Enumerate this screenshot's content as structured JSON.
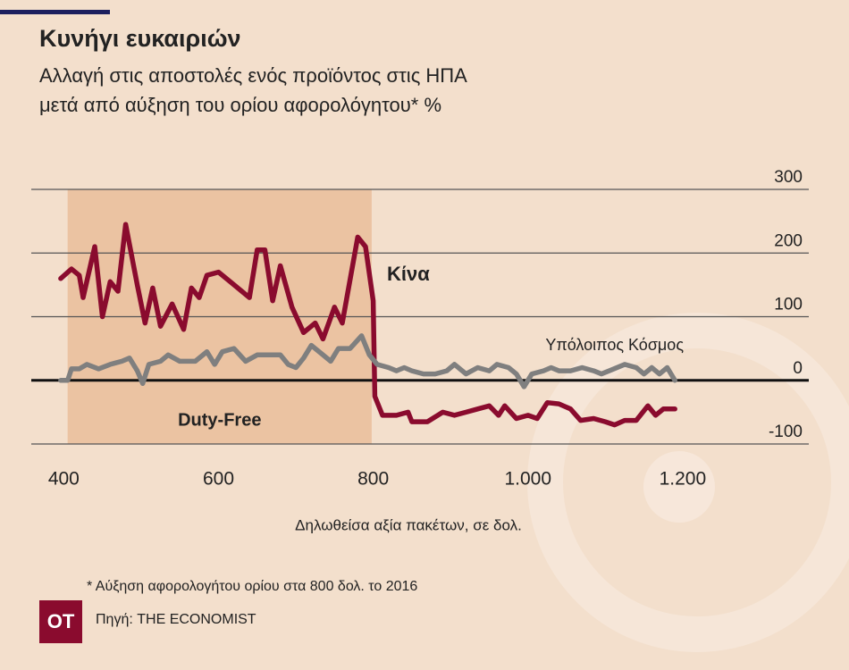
{
  "chart_data": {
    "type": "line",
    "title": "Κυνήγι ευκαιριών",
    "subtitle": [
      "Αλλαγή στις αποστολές ενός προϊόντος στις ΗΠΑ",
      "μετά από αύξηση του ορίου αφορολόγητου* %"
    ],
    "x_label": "Δηλωθείσα αξία πακέτων, σε δολ.",
    "shade": {
      "label": "Duty-Free",
      "range": [
        405,
        798
      ],
      "color": "#ebc3a2"
    },
    "xlim": [
      358,
      1363
    ],
    "xticks": [
      400,
      600,
      800,
      {
        "value": 1000,
        "label": "1.000"
      },
      {
        "value": 1200,
        "label": "1.200"
      }
    ],
    "ylim": [
      -100,
      300
    ],
    "yticks": [
      300,
      200,
      100,
      0,
      -100
    ],
    "grid": true,
    "series": [
      {
        "name": "Κίνα",
        "color": "#8a0b2e",
        "x": [
          396,
          410,
          420,
          425,
          440,
          450,
          460,
          470,
          480,
          495,
          505,
          515,
          525,
          540,
          555,
          565,
          575,
          585,
          600,
          615,
          640,
          650,
          660,
          670,
          680,
          695,
          710,
          725,
          735,
          750,
          760,
          780,
          790,
          800,
          802,
          812,
          830,
          845,
          850,
          870,
          890,
          905,
          920,
          935,
          950,
          962,
          970,
          985,
          1000,
          1012,
          1025,
          1040,
          1055,
          1068,
          1085,
          1100,
          1112,
          1125,
          1140,
          1155,
          1165,
          1175,
          1190
        ],
        "values": [
          160,
          175,
          165,
          130,
          210,
          100,
          155,
          140,
          245,
          150,
          90,
          145,
          85,
          120,
          80,
          145,
          130,
          165,
          170,
          155,
          130,
          205,
          205,
          125,
          180,
          115,
          75,
          90,
          65,
          115,
          90,
          225,
          210,
          125,
          -25,
          -55,
          -55,
          -50,
          -65,
          -65,
          -50,
          -55,
          -50,
          -45,
          -40,
          -55,
          -40,
          -60,
          -55,
          -60,
          -35,
          -37,
          -45,
          -63,
          -60,
          -65,
          -70,
          -63,
          -63,
          -40,
          -55,
          -45,
          -45
        ]
      },
      {
        "name": "Υπόλοιπος Κόσμος",
        "color": "#7f7f7f",
        "x": [
          396,
          405,
          410,
          420,
          430,
          445,
          460,
          475,
          485,
          495,
          502,
          510,
          525,
          535,
          550,
          560,
          570,
          585,
          595,
          605,
          620,
          635,
          650,
          665,
          680,
          690,
          700,
          710,
          720,
          735,
          745,
          755,
          770,
          785,
          795,
          805,
          820,
          830,
          840,
          850,
          865,
          880,
          895,
          905,
          920,
          935,
          950,
          960,
          975,
          985,
          995,
          1005,
          1020,
          1030,
          1040,
          1055,
          1070,
          1085,
          1095,
          1105,
          1125,
          1140,
          1150,
          1160,
          1170,
          1180,
          1190
        ],
        "values": [
          0,
          0,
          18,
          18,
          25,
          18,
          25,
          30,
          35,
          15,
          -5,
          25,
          30,
          40,
          30,
          30,
          30,
          45,
          25,
          45,
          50,
          30,
          40,
          40,
          40,
          25,
          20,
          35,
          55,
          40,
          30,
          50,
          50,
          70,
          40,
          25,
          20,
          15,
          20,
          15,
          10,
          10,
          15,
          25,
          10,
          20,
          15,
          25,
          20,
          10,
          -10,
          10,
          15,
          20,
          15,
          15,
          20,
          15,
          10,
          15,
          25,
          20,
          10,
          20,
          10,
          20,
          0
        ]
      }
    ],
    "note": "* Αύξηση αφορολογήτου ορίου στα 800 δολ. το 2016",
    "logo": "OT",
    "source": "Πηγή: THE ECONOMIST"
  }
}
